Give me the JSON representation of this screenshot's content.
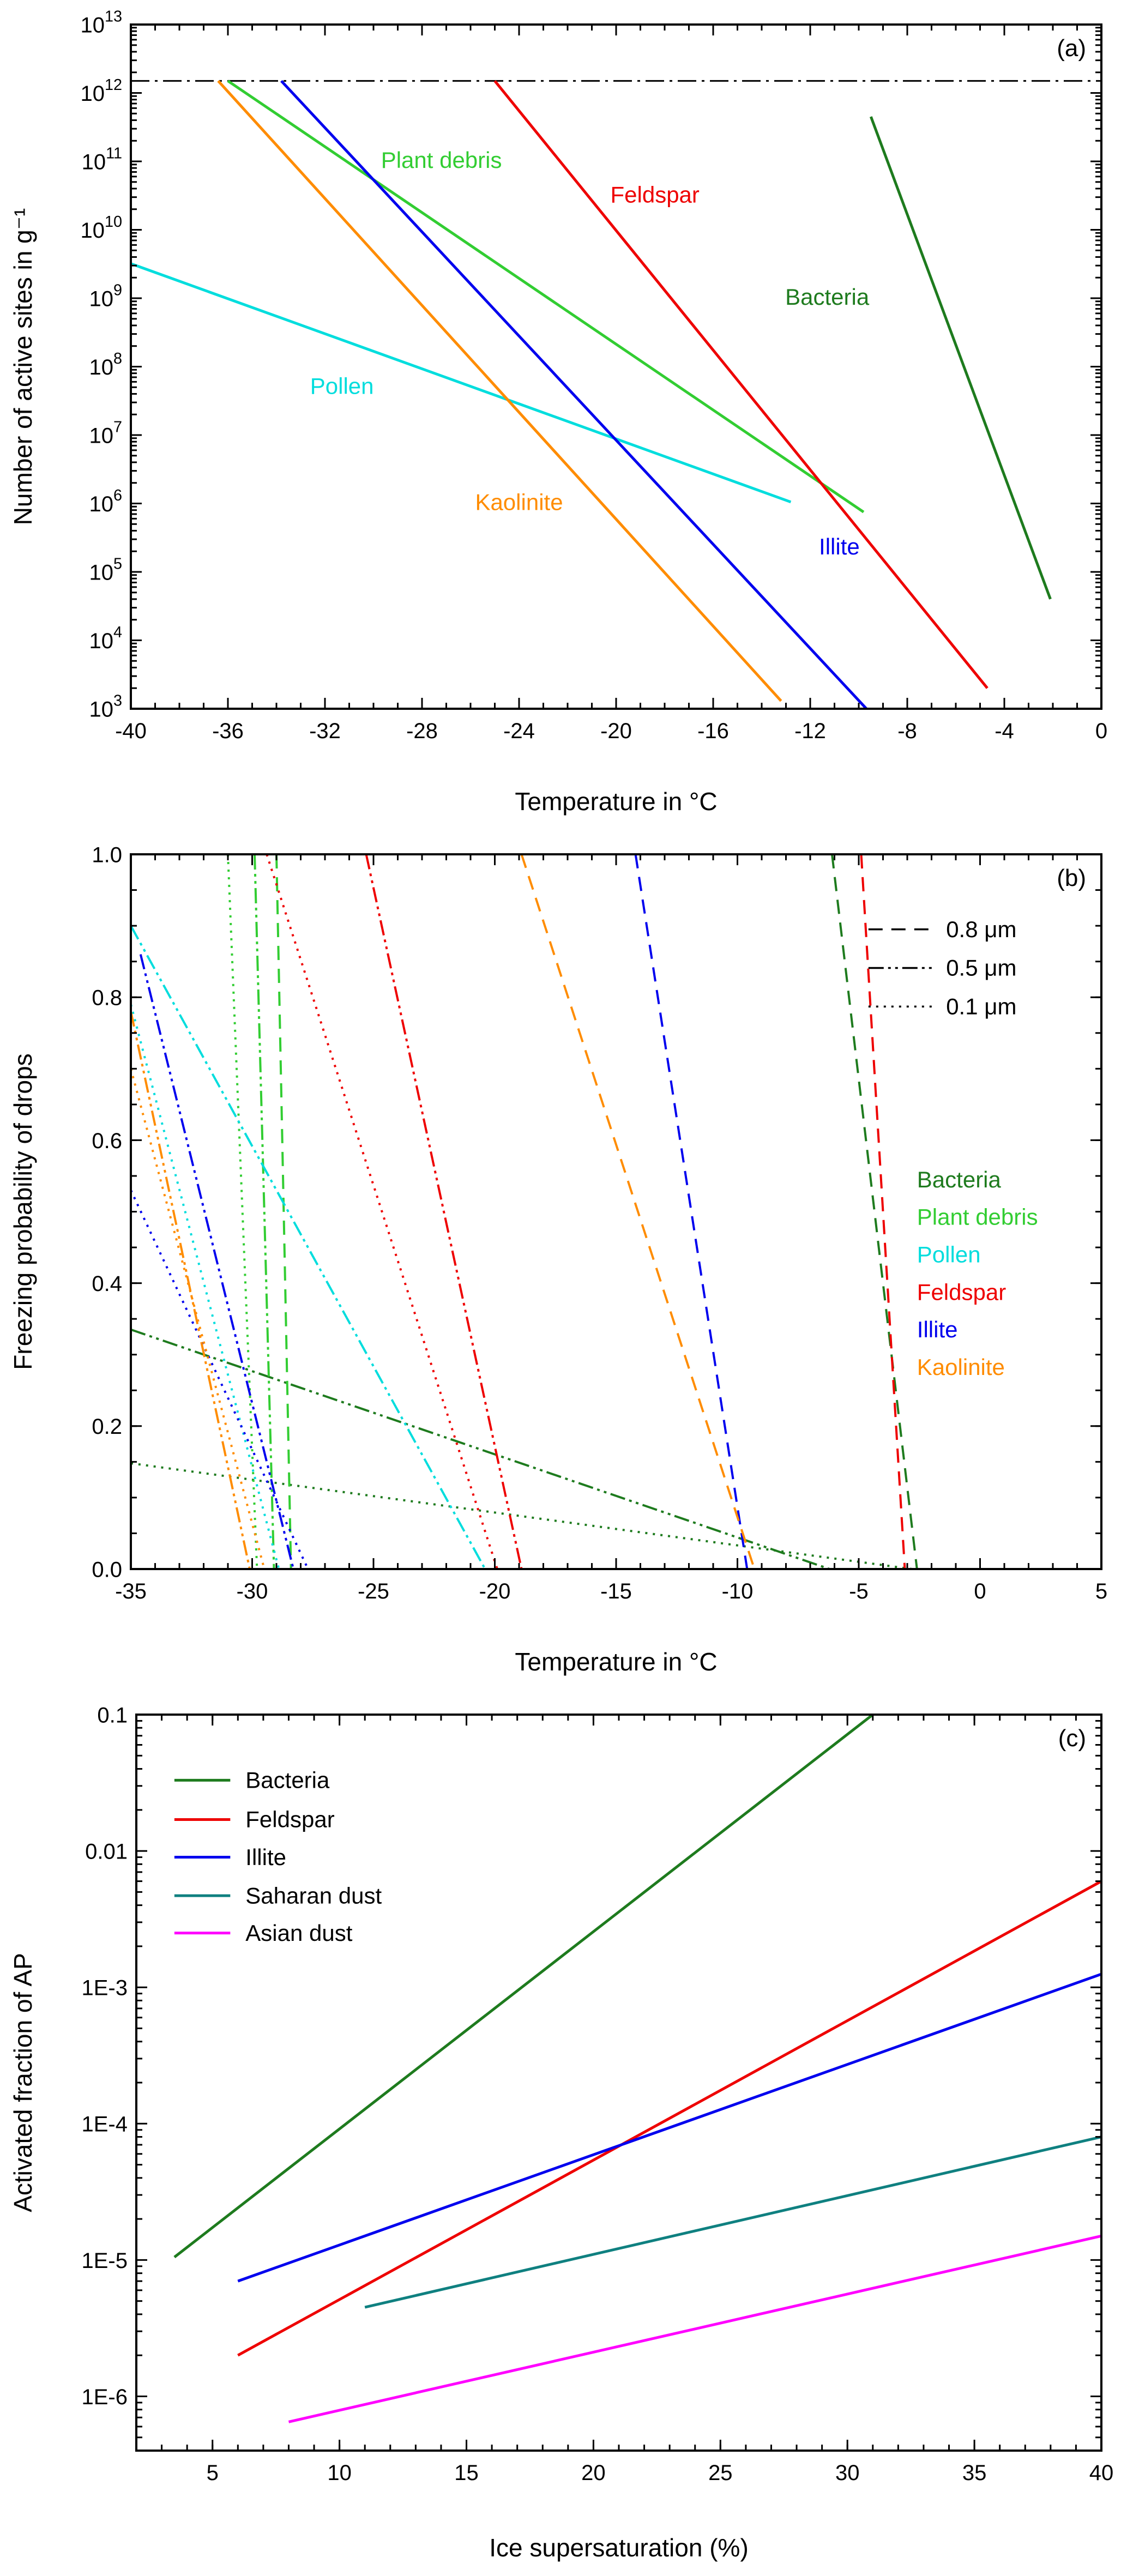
{
  "chart_data": [
    {
      "id": "a",
      "type": "line",
      "panel_label": "(a)",
      "xlabel": "Temperature in °C",
      "ylabel": "Number of active sites in g⁻¹",
      "x_axis": {
        "min": -40,
        "max": 0,
        "major_step": 4,
        "minor_step": 1
      },
      "y_axis": {
        "scale": "log",
        "min": 1000.0,
        "max": 10000000000000.0,
        "tick_exponents": [
          3,
          4,
          5,
          6,
          7,
          8,
          9,
          10,
          11,
          12,
          13
        ]
      },
      "reference_lines": [
        {
          "name": "max-active-sites-reference",
          "y": 1500000000000.0,
          "style": "dashdot",
          "color": "#000000"
        }
      ],
      "series": [
        {
          "name": "Plant debris",
          "color": "#32CD32",
          "style": "solid",
          "points": [
            [
              -36.0,
              1500000000000.0
            ],
            [
              -9.8,
              750000.0
            ]
          ]
        },
        {
          "name": "Feldspar",
          "color": "#EE0000",
          "style": "solid",
          "points": [
            [
              -25.0,
              1500000000000.0
            ],
            [
              -4.7,
              2000.0
            ]
          ]
        },
        {
          "name": "Bacteria",
          "color": "#1E7B1E",
          "style": "solid",
          "points": [
            [
              -9.5,
              450000000000.0
            ],
            [
              -2.1,
              40000.0
            ]
          ]
        },
        {
          "name": "Pollen",
          "color": "#00DDDD",
          "style": "solid",
          "points": [
            [
              -40,
              3200000000.0
            ],
            [
              -12.8,
              1050000.0
            ]
          ]
        },
        {
          "name": "Kaolinite",
          "color": "#FF8C00",
          "style": "solid",
          "points": [
            [
              -36.4,
              1500000000000.0
            ],
            [
              -13.2,
              1300.0
            ]
          ]
        },
        {
          "name": "Illite",
          "color": "#0000EE",
          "style": "solid",
          "points": [
            [
              -33.8,
              1500000000000.0
            ],
            [
              -9.0,
              550.0
            ]
          ]
        }
      ],
      "annotations": [
        {
          "text": "Plant debris",
          "x": -27.2,
          "y": 80000000000.0,
          "color": "#32CD32"
        },
        {
          "text": "Feldspar",
          "x": -18.4,
          "y": 25000000000.0,
          "color": "#EE0000"
        },
        {
          "text": "Bacteria",
          "x": -11.3,
          "y": 800000000.0,
          "color": "#1E7B1E"
        },
        {
          "text": "Pollen",
          "x": -31.3,
          "y": 40000000.0,
          "color": "#00DDDD"
        },
        {
          "text": "Kaolinite",
          "x": -24.0,
          "y": 800000.0,
          "color": "#FF8C00"
        },
        {
          "text": "Illite",
          "x": -10.8,
          "y": 180000.0,
          "color": "#0000EE"
        }
      ]
    },
    {
      "id": "b",
      "type": "line",
      "panel_label": "(b)",
      "xlabel": "Temperature in °C",
      "ylabel": "Freezing probability of drops",
      "x_axis": {
        "min": -35,
        "max": 5,
        "major_step": 5,
        "minor_step": 1
      },
      "y_axis": {
        "scale": "linear",
        "min": 0,
        "max": 1,
        "major_step": 0.2,
        "minor_step": 0.05,
        "decimals": 1
      },
      "size_legend": {
        "x1": -4.6,
        "x2": -1.9,
        "tx": -1.4,
        "y_start": 0.895,
        "y_step": -0.054,
        "entries": [
          {
            "label": "0.8 μm",
            "style": "dashed"
          },
          {
            "label": "0.5 μm",
            "style": "dashdotdot"
          },
          {
            "label": "0.1 μm",
            "style": "dotted"
          }
        ]
      },
      "color_key": {
        "x": -2.6,
        "y_start": 0.545,
        "y_step": -0.0525,
        "entries": [
          {
            "label": "Bacteria",
            "color": "#1E7B1E"
          },
          {
            "label": "Plant debris",
            "color": "#32CD32"
          },
          {
            "label": "Pollen",
            "color": "#00DDDD"
          },
          {
            "label": "Feldspar",
            "color": "#EE0000"
          },
          {
            "label": "Illite",
            "color": "#0000EE"
          },
          {
            "label": "Kaolinite",
            "color": "#FF8C00"
          }
        ]
      },
      "series": [
        {
          "name": "Bacteria 0.8 μm",
          "color": "#1E7B1E",
          "style": "dashed",
          "points": [
            [
              -6.1,
              1.0
            ],
            [
              -2.6,
              0.0
            ]
          ]
        },
        {
          "name": "Bacteria 0.5 μm",
          "color": "#1E7B1E",
          "style": "dashdotdot",
          "points": [
            [
              -35,
              0.335
            ],
            [
              -6.2,
              0.0
            ]
          ]
        },
        {
          "name": "Bacteria 0.1 μm",
          "color": "#1E7B1E",
          "style": "dotted",
          "points": [
            [
              -35,
              0.148
            ],
            [
              -2.8,
              0.0
            ]
          ]
        },
        {
          "name": "Plant debris 0.8 μm",
          "color": "#32CD32",
          "style": "dashed",
          "points": [
            [
              -29.0,
              1.0
            ],
            [
              -28.4,
              0.0
            ]
          ]
        },
        {
          "name": "Plant debris 0.5 μm",
          "color": "#32CD32",
          "style": "dashdotdot",
          "points": [
            [
              -29.9,
              1.0
            ],
            [
              -29.1,
              0.0
            ]
          ]
        },
        {
          "name": "Plant debris 0.1 μm",
          "color": "#32CD32",
          "style": "dotted",
          "points": [
            [
              -31.0,
              1.0
            ],
            [
              -29.8,
              0.0
            ]
          ]
        },
        {
          "name": "Pollen 0.5 μm",
          "color": "#00DDDD",
          "style": "dashdotdot",
          "points": [
            [
              -35,
              0.9
            ],
            [
              -20.4,
              0.0
            ]
          ]
        },
        {
          "name": "Pollen 0.1 μm",
          "color": "#00DDDD",
          "style": "dotted",
          "points": [
            [
              -35,
              0.79
            ],
            [
              -28.9,
              0.0
            ]
          ]
        },
        {
          "name": "Feldspar 0.8 μm",
          "color": "#EE0000",
          "style": "dashed",
          "points": [
            [
              -4.9,
              1.0
            ],
            [
              -3.1,
              0.0
            ]
          ]
        },
        {
          "name": "Feldspar 0.5 μm",
          "color": "#EE0000",
          "style": "dashdotdot",
          "points": [
            [
              -25.3,
              1.0
            ],
            [
              -18.9,
              0.0
            ]
          ]
        },
        {
          "name": "Feldspar 0.1 μm",
          "color": "#EE0000",
          "style": "dotted",
          "points": [
            [
              -29.4,
              1.0
            ],
            [
              -19.9,
              0.0
            ]
          ]
        },
        {
          "name": "Illite 0.8 μm",
          "color": "#0000EE",
          "style": "dashed",
          "points": [
            [
              -14.2,
              1.0
            ],
            [
              -9.6,
              0.0
            ]
          ]
        },
        {
          "name": "Illite 0.5 μm",
          "color": "#0000EE",
          "style": "dashdotdot",
          "points": [
            [
              -34.6,
              0.86
            ],
            [
              -28.3,
              0.0
            ]
          ]
        },
        {
          "name": "Illite 0.1 μm",
          "color": "#0000EE",
          "style": "dotted",
          "points": [
            [
              -35,
              0.53
            ],
            [
              -27.7,
              0.0
            ]
          ]
        },
        {
          "name": "Kaolinite 0.8 μm",
          "color": "#FF8C00",
          "style": "dashed",
          "points": [
            [
              -18.9,
              1.0
            ],
            [
              -9.3,
              0.0
            ]
          ]
        },
        {
          "name": "Kaolinite 0.5 μm",
          "color": "#FF8C00",
          "style": "dashdotdot",
          "points": [
            [
              -35,
              0.78
            ],
            [
              -30.1,
              0.0
            ]
          ]
        },
        {
          "name": "Kaolinite 0.1 μm",
          "color": "#FF8C00",
          "style": "dotted",
          "points": [
            [
              -35,
              0.7
            ],
            [
              -29.5,
              0.0
            ]
          ]
        }
      ]
    },
    {
      "id": "c",
      "type": "line",
      "panel_label": "(c)",
      "xlabel": "Ice supersaturation (%)",
      "ylabel": "Activated fraction of AP",
      "x_axis": {
        "min": 2,
        "max": 40,
        "major_start": 5,
        "major_step": 5,
        "minor_step": 1
      },
      "y_axis": {
        "scale": "log",
        "min": 4e-07,
        "max": 0.1,
        "ticks": [
          {
            "v": 1e-06,
            "label": "1E-6"
          },
          {
            "v": 1e-05,
            "label": "1E-5"
          },
          {
            "v": 0.0001,
            "label": "1E-4"
          },
          {
            "v": 0.001,
            "label": "1E-3"
          },
          {
            "v": 0.01,
            "label": "0.01"
          },
          {
            "v": 0.1,
            "label": "0.1"
          }
        ]
      },
      "legend": {
        "x1": 3.5,
        "x2": 5.7,
        "tx": 6.3,
        "y_values": [
          0.033,
          0.017,
          0.009,
          0.0047,
          0.0025
        ],
        "entries": [
          {
            "label": "Bacteria",
            "color": "#1E7B1E"
          },
          {
            "label": "Feldspar",
            "color": "#EE0000"
          },
          {
            "label": "Illite",
            "color": "#0000EE"
          },
          {
            "label": "Saharan dust",
            "color": "#0F8080"
          },
          {
            "label": "Asian dust",
            "color": "#FF00FF"
          }
        ]
      },
      "series": [
        {
          "name": "Bacteria",
          "color": "#1E7B1E",
          "style": "solid",
          "points": [
            [
              3.5,
              1.05e-05
            ],
            [
              31,
              0.1
            ]
          ]
        },
        {
          "name": "Feldspar",
          "color": "#EE0000",
          "style": "solid",
          "points": [
            [
              6,
              2e-06
            ],
            [
              40,
              0.006
            ]
          ]
        },
        {
          "name": "Illite",
          "color": "#0000EE",
          "style": "solid",
          "points": [
            [
              6,
              7e-06
            ],
            [
              40,
              0.00125
            ]
          ]
        },
        {
          "name": "Saharan dust",
          "color": "#0F8080",
          "style": "solid",
          "points": [
            [
              11,
              4.5e-06
            ],
            [
              40,
              8e-05
            ]
          ]
        },
        {
          "name": "Asian dust",
          "color": "#FF00FF",
          "style": "solid",
          "points": [
            [
              8,
              6.5e-07
            ],
            [
              40,
              1.5e-05
            ]
          ]
        }
      ]
    }
  ]
}
